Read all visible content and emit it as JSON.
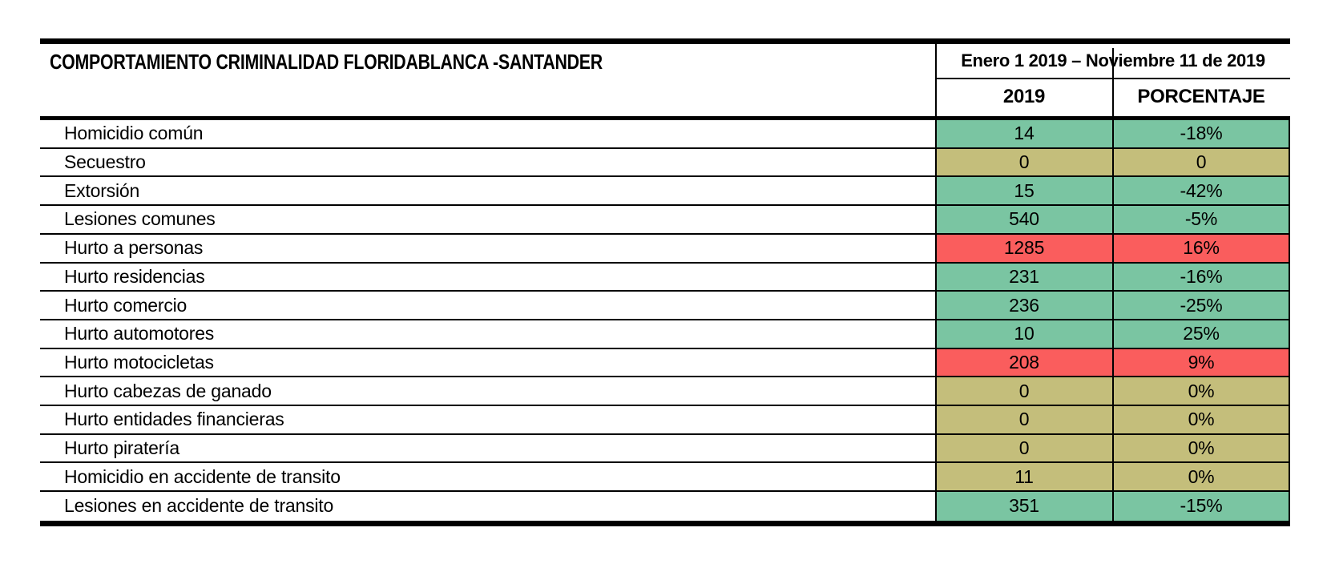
{
  "table": {
    "title": "COMPORTAMIENTO CRIMINALIDAD FLORIDABLANCA -SANTANDER",
    "period": "Enero 1 2019 – Noviembre 11 de 2019",
    "columns": [
      "2019",
      "PORCENTAJE"
    ],
    "rows": [
      {
        "label": "Homicidio común",
        "value": "14",
        "percentage": "-18%",
        "status": "green"
      },
      {
        "label": "Secuestro",
        "value": "0",
        "percentage": "0",
        "status": "khaki"
      },
      {
        "label": "Extorsión",
        "value": "15",
        "percentage": "-42%",
        "status": "green"
      },
      {
        "label": "Lesiones comunes",
        "value": "540",
        "percentage": "-5%",
        "status": "green"
      },
      {
        "label": "Hurto a personas",
        "value": "1285",
        "percentage": "16%",
        "status": "red"
      },
      {
        "label": "Hurto residencias",
        "value": "231",
        "percentage": "-16%",
        "status": "green"
      },
      {
        "label": "Hurto comercio",
        "value": "236",
        "percentage": "-25%",
        "status": "green"
      },
      {
        "label": "Hurto automotores",
        "value": "10",
        "percentage": "25%",
        "status": "green"
      },
      {
        "label": "Hurto motocicletas",
        "value": "208",
        "percentage": "9%",
        "status": "red"
      },
      {
        "label": "Hurto cabezas de ganado",
        "value": "0",
        "percentage": "0%",
        "status": "khaki"
      },
      {
        "label": "Hurto entidades financieras",
        "value": "0",
        "percentage": "0%",
        "status": "khaki"
      },
      {
        "label": "Hurto piratería",
        "value": "0",
        "percentage": "0%",
        "status": "khaki"
      },
      {
        "label": "Homicidio en accidente de transito",
        "value": "11",
        "percentage": "0%",
        "status": "khaki"
      },
      {
        "label": "Lesiones en accidente de transito",
        "value": "351",
        "percentage": "-15%",
        "status": "green"
      }
    ]
  },
  "colors": {
    "green": "#7ac5a2",
    "khaki": "#c4be7b",
    "red": "#fa5d5d",
    "border": "#000000"
  },
  "chart_data": {
    "type": "table",
    "title": "COMPORTAMIENTO CRIMINALIDAD FLORIDABLANCA -SANTANDER",
    "subtitle": "Enero 1 2019 – Noviembre 11 de 2019",
    "columns": [
      "2019",
      "PORCENTAJE"
    ],
    "categories": [
      "Homicidio común",
      "Secuestro",
      "Extorsión",
      "Lesiones comunes",
      "Hurto a personas",
      "Hurto residencias",
      "Hurto comercio",
      "Hurto automotores",
      "Hurto motocicletas",
      "Hurto cabezas de ganado",
      "Hurto entidades financieras",
      "Hurto piratería",
      "Homicidio en accidente de transito",
      "Lesiones en accidente de transito"
    ],
    "series": [
      {
        "name": "2019",
        "values": [
          14,
          0,
          15,
          540,
          1285,
          231,
          236,
          10,
          208,
          0,
          0,
          0,
          11,
          351
        ]
      },
      {
        "name": "PORCENTAJE",
        "values": [
          "-18%",
          "0",
          "-42%",
          "-5%",
          "16%",
          "-16%",
          "-25%",
          "25%",
          "9%",
          "0%",
          "0%",
          "0%",
          "0%",
          "-15%"
        ]
      }
    ],
    "row_status_colors": [
      "green",
      "khaki",
      "green",
      "green",
      "red",
      "green",
      "green",
      "green",
      "red",
      "khaki",
      "khaki",
      "khaki",
      "khaki",
      "green"
    ]
  }
}
